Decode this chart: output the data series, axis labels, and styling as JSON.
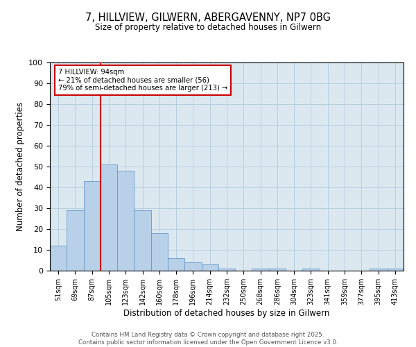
{
  "title": "7, HILLVIEW, GILWERN, ABERGAVENNY, NP7 0BG",
  "subtitle": "Size of property relative to detached houses in Gilwern",
  "xlabel": "Distribution of detached houses by size in Gilwern",
  "ylabel": "Number of detached properties",
  "categories": [
    "51sqm",
    "69sqm",
    "87sqm",
    "105sqm",
    "123sqm",
    "142sqm",
    "160sqm",
    "178sqm",
    "196sqm",
    "214sqm",
    "232sqm",
    "250sqm",
    "268sqm",
    "286sqm",
    "304sqm",
    "323sqm",
    "341sqm",
    "359sqm",
    "377sqm",
    "395sqm",
    "413sqm"
  ],
  "values": [
    12,
    29,
    43,
    51,
    48,
    29,
    18,
    6,
    4,
    3,
    1,
    0,
    1,
    1,
    0,
    1,
    0,
    0,
    0,
    1,
    1
  ],
  "bar_color": "#b8d0e8",
  "bar_edge_color": "#6699cc",
  "vline_x_index": 2.5,
  "vline_color": "#cc0000",
  "annotation_text": "7 HILLVIEW: 94sqm\n← 21% of detached houses are smaller (56)\n79% of semi-detached houses are larger (213) →",
  "annotation_box_color": "#ffffff",
  "annotation_box_edge": "#cc0000",
  "ylim": [
    0,
    100
  ],
  "yticks": [
    0,
    10,
    20,
    30,
    40,
    50,
    60,
    70,
    80,
    90,
    100
  ],
  "background_color": "#ffffff",
  "plot_bg_color": "#dce8f0",
  "grid_color": "#b8cfe0",
  "footer_line1": "Contains HM Land Registry data © Crown copyright and database right 2025.",
  "footer_line2": "Contains public sector information licensed under the Open Government Licence v3.0."
}
